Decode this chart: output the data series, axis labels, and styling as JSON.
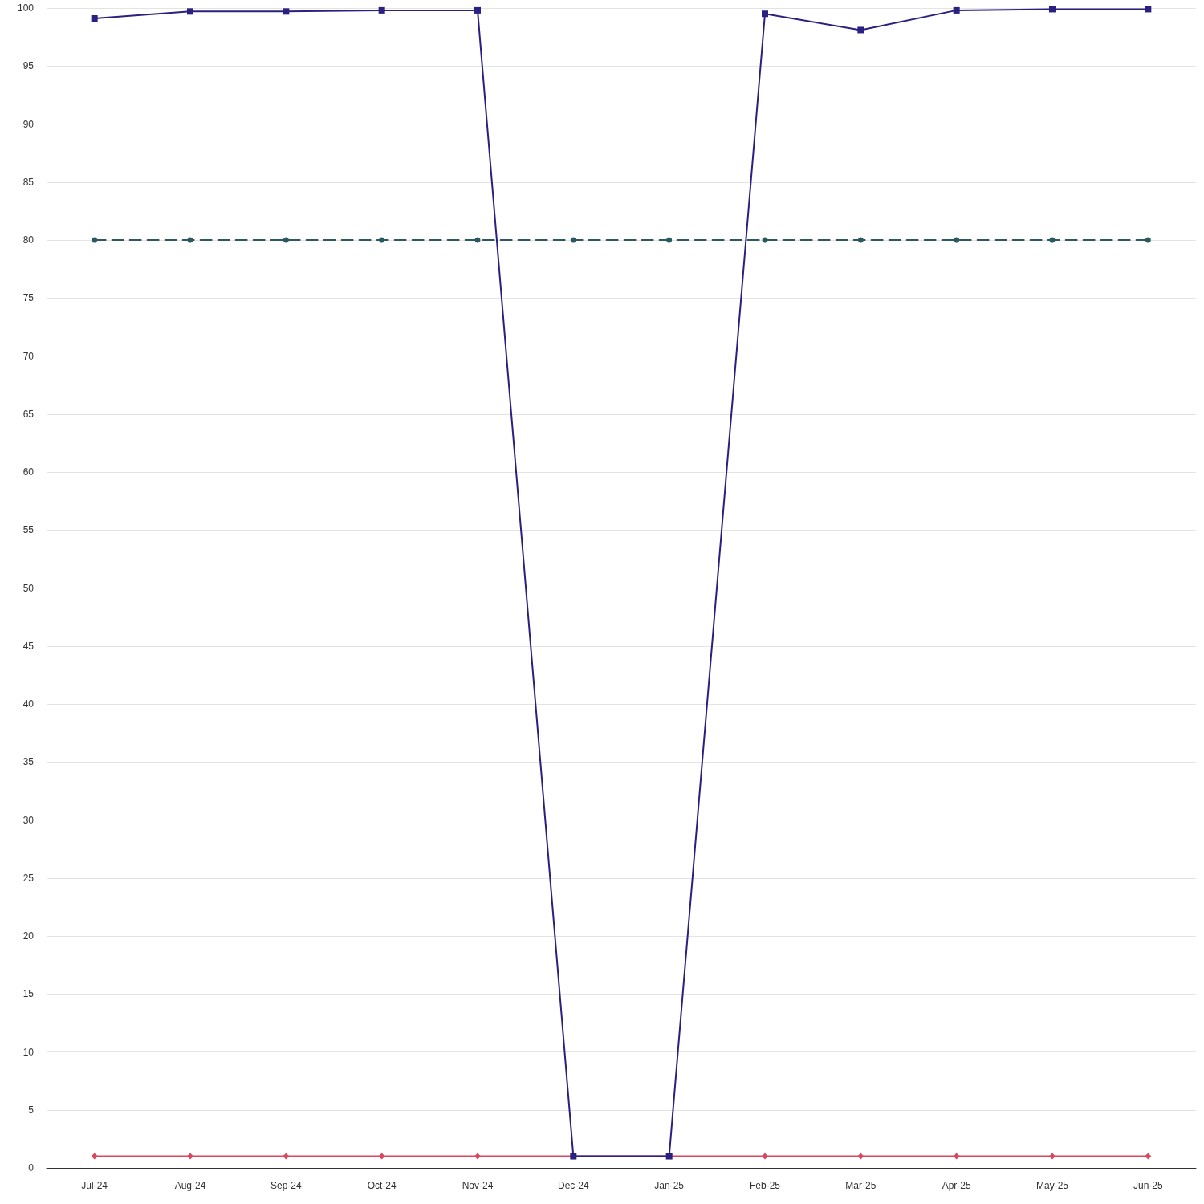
{
  "chart_data": {
    "type": "line",
    "categories": [
      "Jul-24",
      "Aug-24",
      "Sep-24",
      "Oct-24",
      "Nov-24",
      "Dec-24",
      "Jan-25",
      "Feb-25",
      "Mar-25",
      "Apr-25",
      "May-25",
      "Jun-25"
    ],
    "series": [
      {
        "color": "#d9485f",
        "marker": "diamond",
        "line_style": "solid",
        "values": [
          1,
          1,
          1,
          1,
          1,
          1,
          1,
          1,
          1,
          1,
          1,
          1
        ]
      },
      {
        "color": "#2a5a5f",
        "marker": "circle",
        "line_style": "dashed",
        "values": [
          80,
          80,
          80,
          80,
          80,
          80,
          80,
          80,
          80,
          80,
          80,
          80
        ]
      },
      {
        "color": "#2a2080",
        "marker": "square",
        "line_style": "solid",
        "values": [
          99.1,
          99.7,
          99.7,
          99.8,
          99.8,
          1,
          1,
          99.5,
          98.1,
          99.8,
          99.9,
          99.9
        ]
      }
    ],
    "ylim": [
      0,
      100
    ],
    "yticks": [
      0,
      5,
      10,
      15,
      20,
      25,
      30,
      35,
      40,
      45,
      50,
      55,
      60,
      65,
      70,
      75,
      80,
      85,
      90,
      95,
      100
    ],
    "grid": "y"
  }
}
